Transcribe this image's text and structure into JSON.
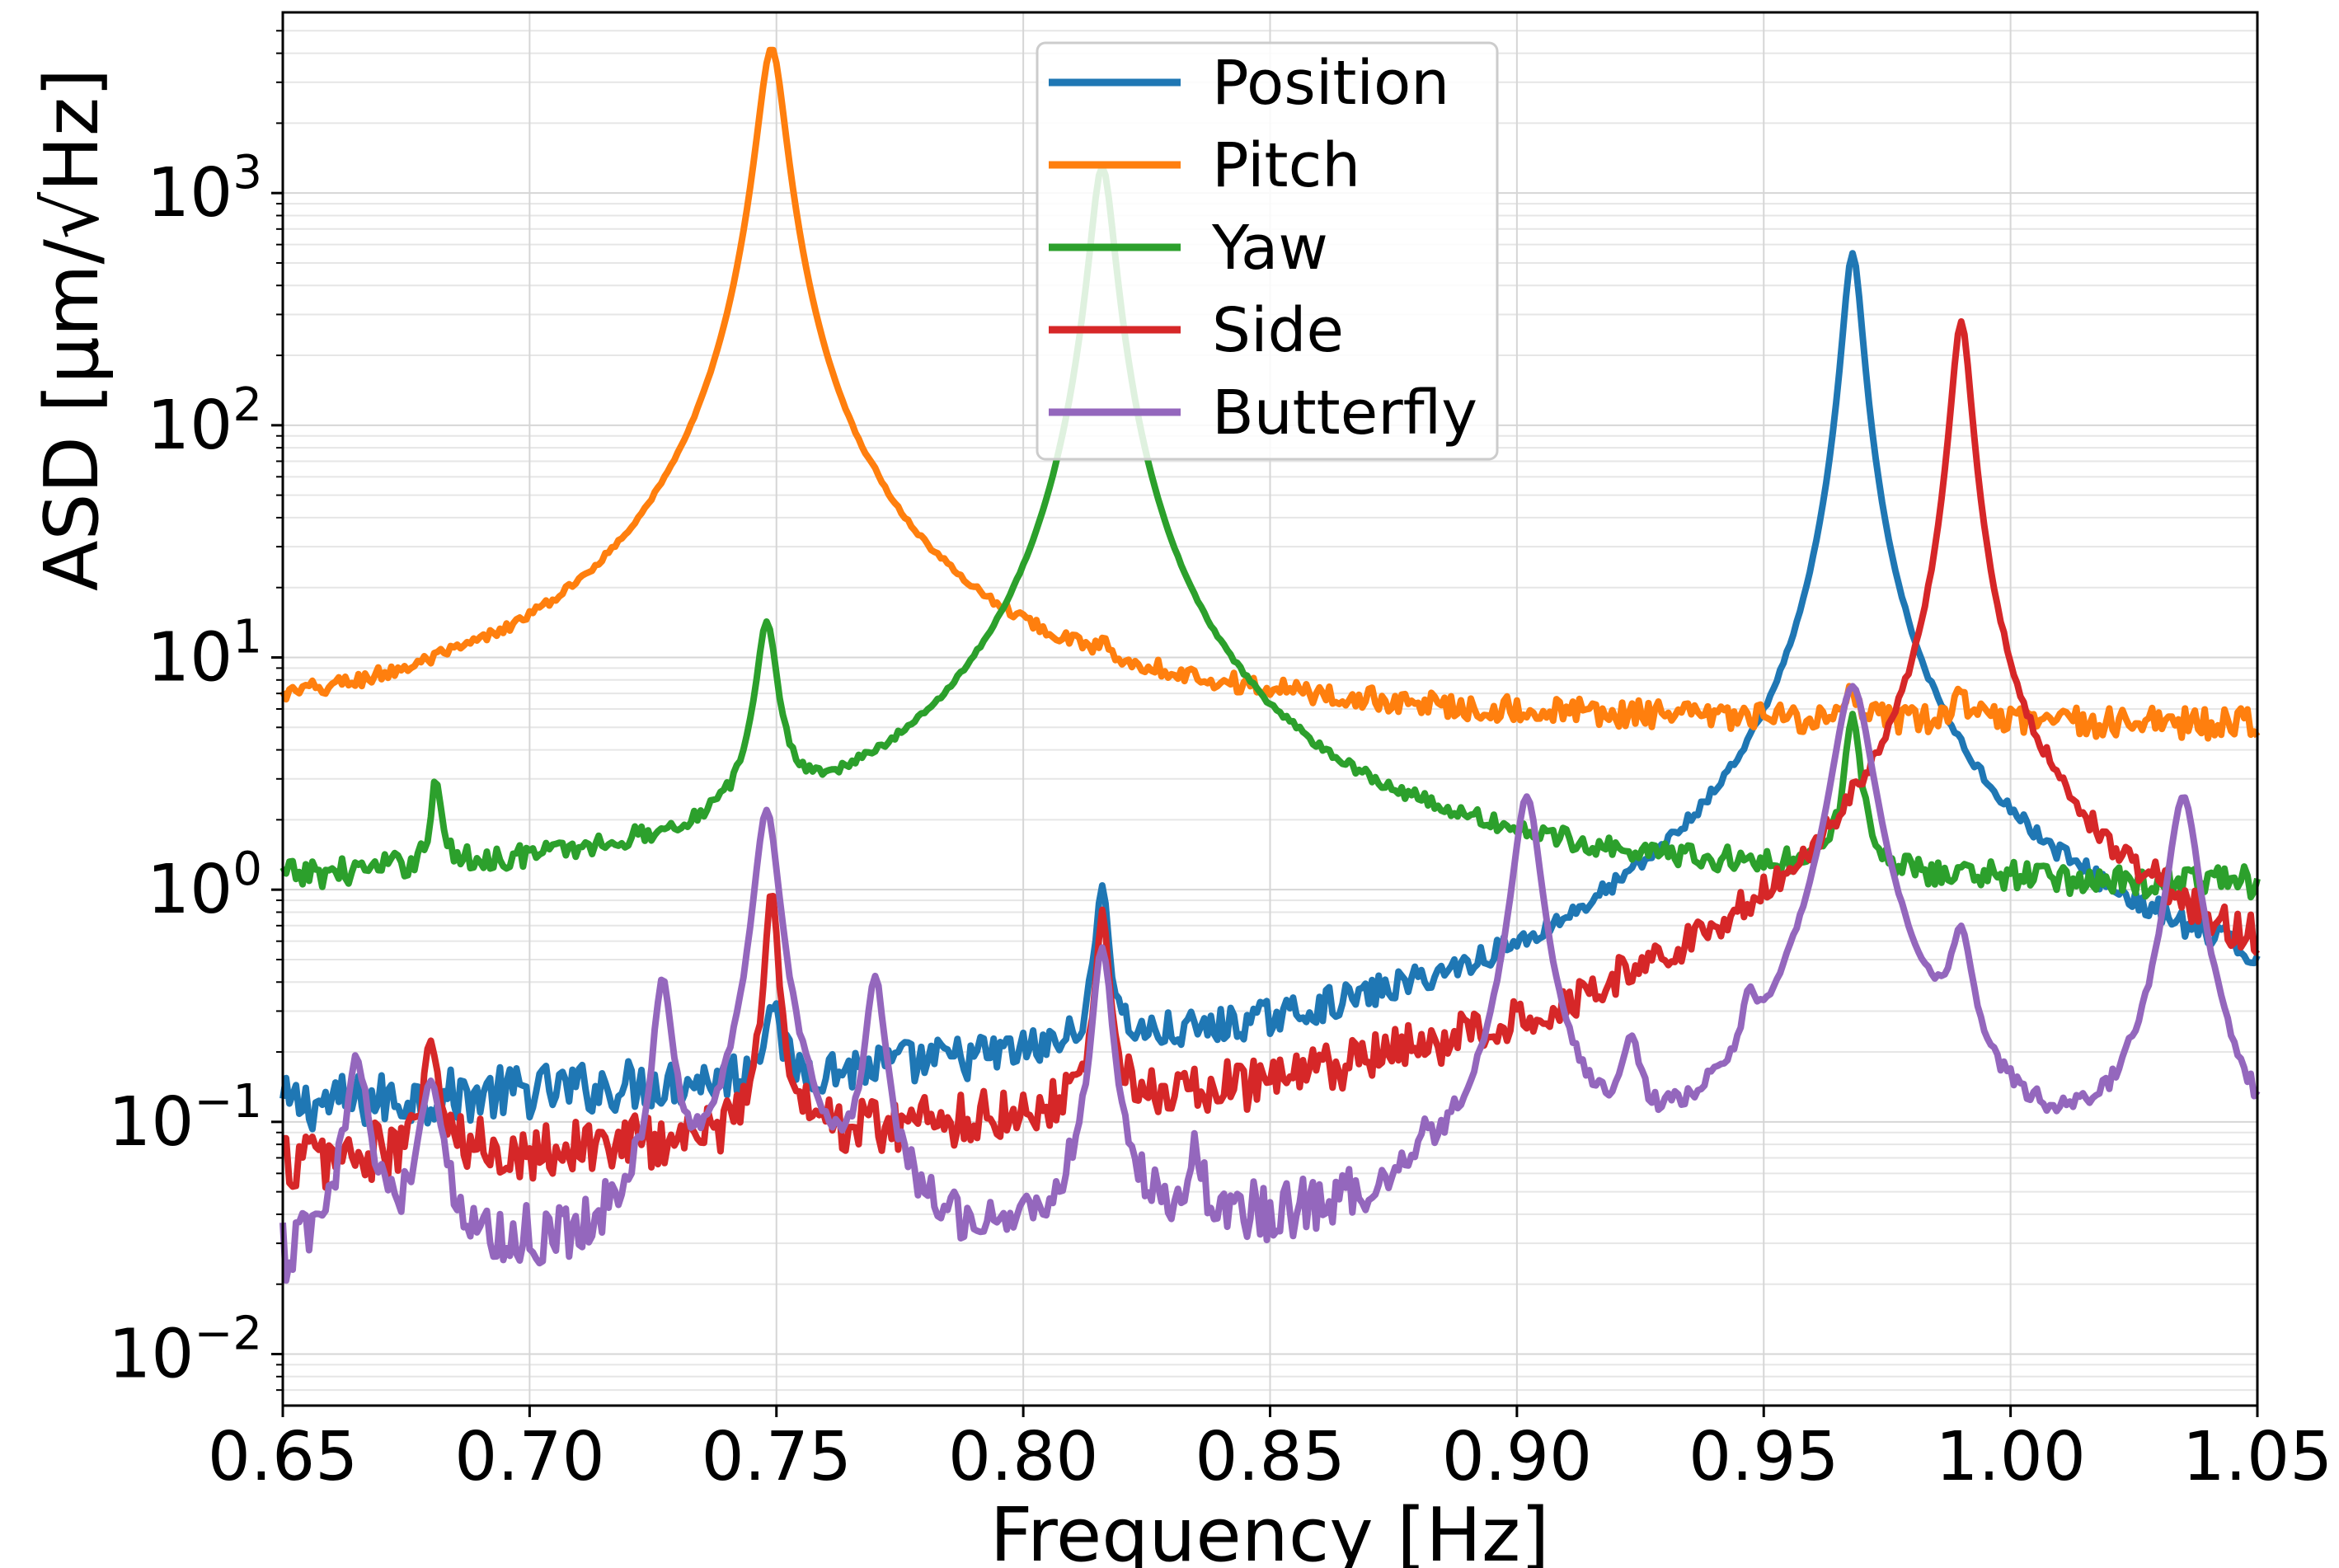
{
  "chart_data": {
    "type": "line",
    "title": "",
    "xlabel": "Frequency [Hz]",
    "ylabel": "ASD [μm/√Hz]",
    "xlim": [
      0.65,
      1.05
    ],
    "ylim": [
      0.006,
      6000
    ],
    "yscale": "log",
    "grid": true,
    "legend_position": "top-center",
    "x_ticks": [
      "0.65",
      "0.70",
      "0.75",
      "0.80",
      "0.85",
      "0.90",
      "0.95",
      "1.00",
      "1.05"
    ],
    "y_ticks": [
      {
        "base": "10",
        "exp": "−2"
      },
      {
        "base": "10",
        "exp": "−1"
      },
      {
        "base": "10",
        "exp": "0"
      },
      {
        "base": "10",
        "exp": "1"
      },
      {
        "base": "10",
        "exp": "2"
      },
      {
        "base": "10",
        "exp": "3"
      }
    ],
    "series": [
      {
        "name": "Position",
        "color": "#1f77b4",
        "floor": [
          [
            0.65,
            0.1
          ],
          [
            0.75,
            0.12
          ],
          [
            0.85,
            0.15
          ],
          [
            0.9,
            0.2
          ],
          [
            0.95,
            0.5
          ],
          [
            0.975,
            1.0
          ],
          [
            1.0,
            0.5
          ],
          [
            1.05,
            0.25
          ]
        ],
        "peaks": [
          [
            0.749,
            0.3,
            0.0015
          ],
          [
            0.816,
            1.0,
            0.0012
          ],
          [
            0.968,
            550,
            0.0018
          ]
        ]
      },
      {
        "name": "Pitch",
        "color": "#ff7f0e",
        "floor": [
          [
            0.65,
            4.2
          ],
          [
            0.75,
            4.6
          ],
          [
            0.85,
            4.8
          ],
          [
            1.05,
            4.9
          ]
        ],
        "peaks": [
          [
            0.749,
            4200,
            0.0025
          ],
          [
            0.77,
            6.5,
            0.001
          ],
          [
            0.816,
            6.0,
            0.001
          ],
          [
            0.968,
            6.5,
            0.0012
          ],
          [
            0.99,
            7.0,
            0.0012
          ]
        ]
      },
      {
        "name": "Yaw",
        "color": "#2ca02c",
        "floor": [
          [
            0.65,
            0.92
          ],
          [
            1.05,
            0.95
          ]
        ],
        "peaks": [
          [
            0.681,
            2.7,
            0.001
          ],
          [
            0.748,
            13,
            0.002
          ],
          [
            0.816,
            1300,
            0.0022
          ],
          [
            0.968,
            5.5,
            0.0015
          ]
        ]
      },
      {
        "name": "Side",
        "color": "#d62728",
        "floor": [
          [
            0.65,
            0.06
          ],
          [
            0.75,
            0.07
          ],
          [
            0.85,
            0.1
          ],
          [
            0.9,
            0.16
          ],
          [
            0.95,
            0.4
          ],
          [
            0.98,
            1.1
          ],
          [
            1.0,
            0.9
          ],
          [
            1.05,
            0.35
          ]
        ],
        "peaks": [
          [
            0.68,
            0.23,
            0.0012
          ],
          [
            0.749,
            1.0,
            0.0012
          ],
          [
            0.816,
            0.75,
            0.0012
          ],
          [
            0.99,
            280,
            0.0018
          ]
        ]
      },
      {
        "name": "Butterfly",
        "color": "#9467bd",
        "floor": [
          [
            0.65,
            0.02
          ],
          [
            0.75,
            0.022
          ],
          [
            0.85,
            0.024
          ],
          [
            0.95,
            0.025
          ],
          [
            1.05,
            0.03
          ]
        ],
        "peaks": [
          [
            0.665,
            0.18,
            0.0022
          ],
          [
            0.68,
            0.15,
            0.0022
          ],
          [
            0.727,
            0.38,
            0.0018
          ],
          [
            0.748,
            2.2,
            0.0022
          ],
          [
            0.77,
            0.4,
            0.0018
          ],
          [
            0.816,
            0.55,
            0.0018
          ],
          [
            0.835,
            0.06,
            0.0015
          ],
          [
            0.881,
            0.05,
            0.0015
          ],
          [
            0.902,
            2.5,
            0.0025
          ],
          [
            0.923,
            0.16,
            0.0018
          ],
          [
            0.947,
            0.17,
            0.0012
          ],
          [
            0.968,
            7.5,
            0.0035
          ],
          [
            0.99,
            0.5,
            0.0022
          ],
          [
            1.035,
            2.5,
            0.0028
          ]
        ]
      }
    ]
  }
}
